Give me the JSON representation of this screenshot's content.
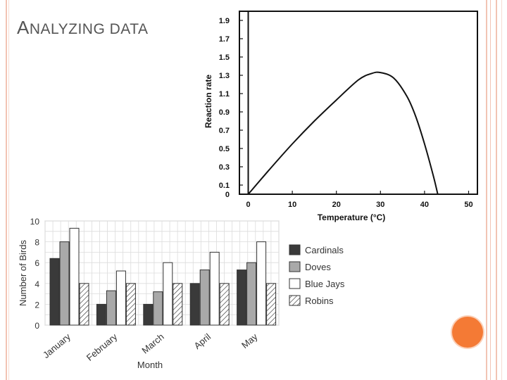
{
  "slide": {
    "title": "ANALYZING DATA"
  },
  "colors": {
    "accent_dot": "#f47a35",
    "border": "#f2c4b4"
  },
  "chart_data": [
    {
      "type": "line",
      "xlabel": "Temperature (°C)",
      "ylabel": "Reaction rate",
      "xlim": [
        -2,
        52
      ],
      "ylim": [
        0,
        2.0
      ],
      "x_ticks": [
        0,
        10,
        20,
        30,
        40,
        50
      ],
      "y_ticks": [
        0,
        0.1,
        0.3,
        0.5,
        0.7,
        0.9,
        1.1,
        1.3,
        1.5,
        1.7,
        1.9
      ],
      "y_tick_labels": [
        "0",
        "0.1",
        "0.3",
        "0.5",
        "0.7",
        "0.9",
        "1.1",
        "1.3",
        "1.5",
        "1.7",
        "1.9"
      ],
      "grid": false,
      "series": [
        {
          "x": [
            0,
            5,
            10,
            15,
            20,
            25,
            28,
            30,
            33,
            36,
            38,
            40,
            42,
            43
          ],
          "y": [
            0,
            0.28,
            0.55,
            0.8,
            1.03,
            1.25,
            1.32,
            1.33,
            1.27,
            1.07,
            0.85,
            0.55,
            0.2,
            0
          ]
        }
      ]
    },
    {
      "type": "bar",
      "xlabel": "Month",
      "ylabel": "Number of Birds",
      "ylim": [
        0,
        10
      ],
      "y_ticks": [
        0,
        2,
        4,
        6,
        8,
        10
      ],
      "grid": true,
      "legend": "right",
      "categories": [
        "January",
        "February",
        "March",
        "April",
        "May"
      ],
      "series": [
        {
          "name": "Cardinals",
          "color": "#3a3a3a",
          "pattern": "solid",
          "values": [
            6.4,
            2.0,
            2.0,
            4.0,
            5.3
          ]
        },
        {
          "name": "Doves",
          "color": "#a9a9a9",
          "pattern": "solid",
          "values": [
            8.0,
            3.3,
            3.2,
            5.3,
            6.0
          ]
        },
        {
          "name": "Blue Jays",
          "color": "#ffffff",
          "pattern": "solid",
          "values": [
            9.3,
            5.2,
            6.0,
            7.0,
            8.0
          ]
        },
        {
          "name": "Robins",
          "color": "#ffffff",
          "pattern": "hatched",
          "values": [
            4.0,
            4.0,
            4.0,
            4.0,
            4.0
          ]
        }
      ]
    }
  ]
}
